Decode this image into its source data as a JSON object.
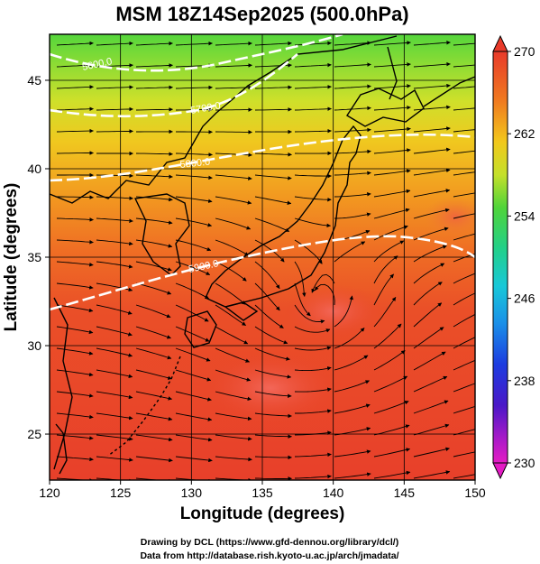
{
  "title": "MSM 18Z14Sep2025 (500.0hPa)",
  "xlabel": "Longitude (degrees)",
  "ylabel": "Latitude  (degrees)",
  "x_ticks": [
    "120",
    "125",
    "130",
    "135",
    "140",
    "145",
    "150"
  ],
  "y_ticks": [
    "25",
    "30",
    "35",
    "40",
    "45"
  ],
  "colorbar": {
    "labels": [
      "270",
      "262",
      "254",
      "246",
      "238",
      "230"
    ],
    "min": 230,
    "max": 270
  },
  "contour_labels": [
    "5600.0",
    "5700.0",
    "5800.0",
    "5900.0"
  ],
  "credits": [
    "Drawing by DCL (https://www.gfd-dennou.org/library/dcl/)",
    "Data from http://database.rish.kyoto-u.ac.jp/arch/jmadata/"
  ],
  "colors": {
    "warm": "#e8452a",
    "mid": "#f08a20",
    "yellow": "#e9d81e",
    "green": "#4fd23a"
  },
  "map_data": {
    "lon_range": [
      120,
      150
    ],
    "lat_range": [
      22.4,
      47.6
    ],
    "grid_interval_deg": 5,
    "typhoon_center": {
      "lon": 139,
      "lat": 32
    }
  }
}
